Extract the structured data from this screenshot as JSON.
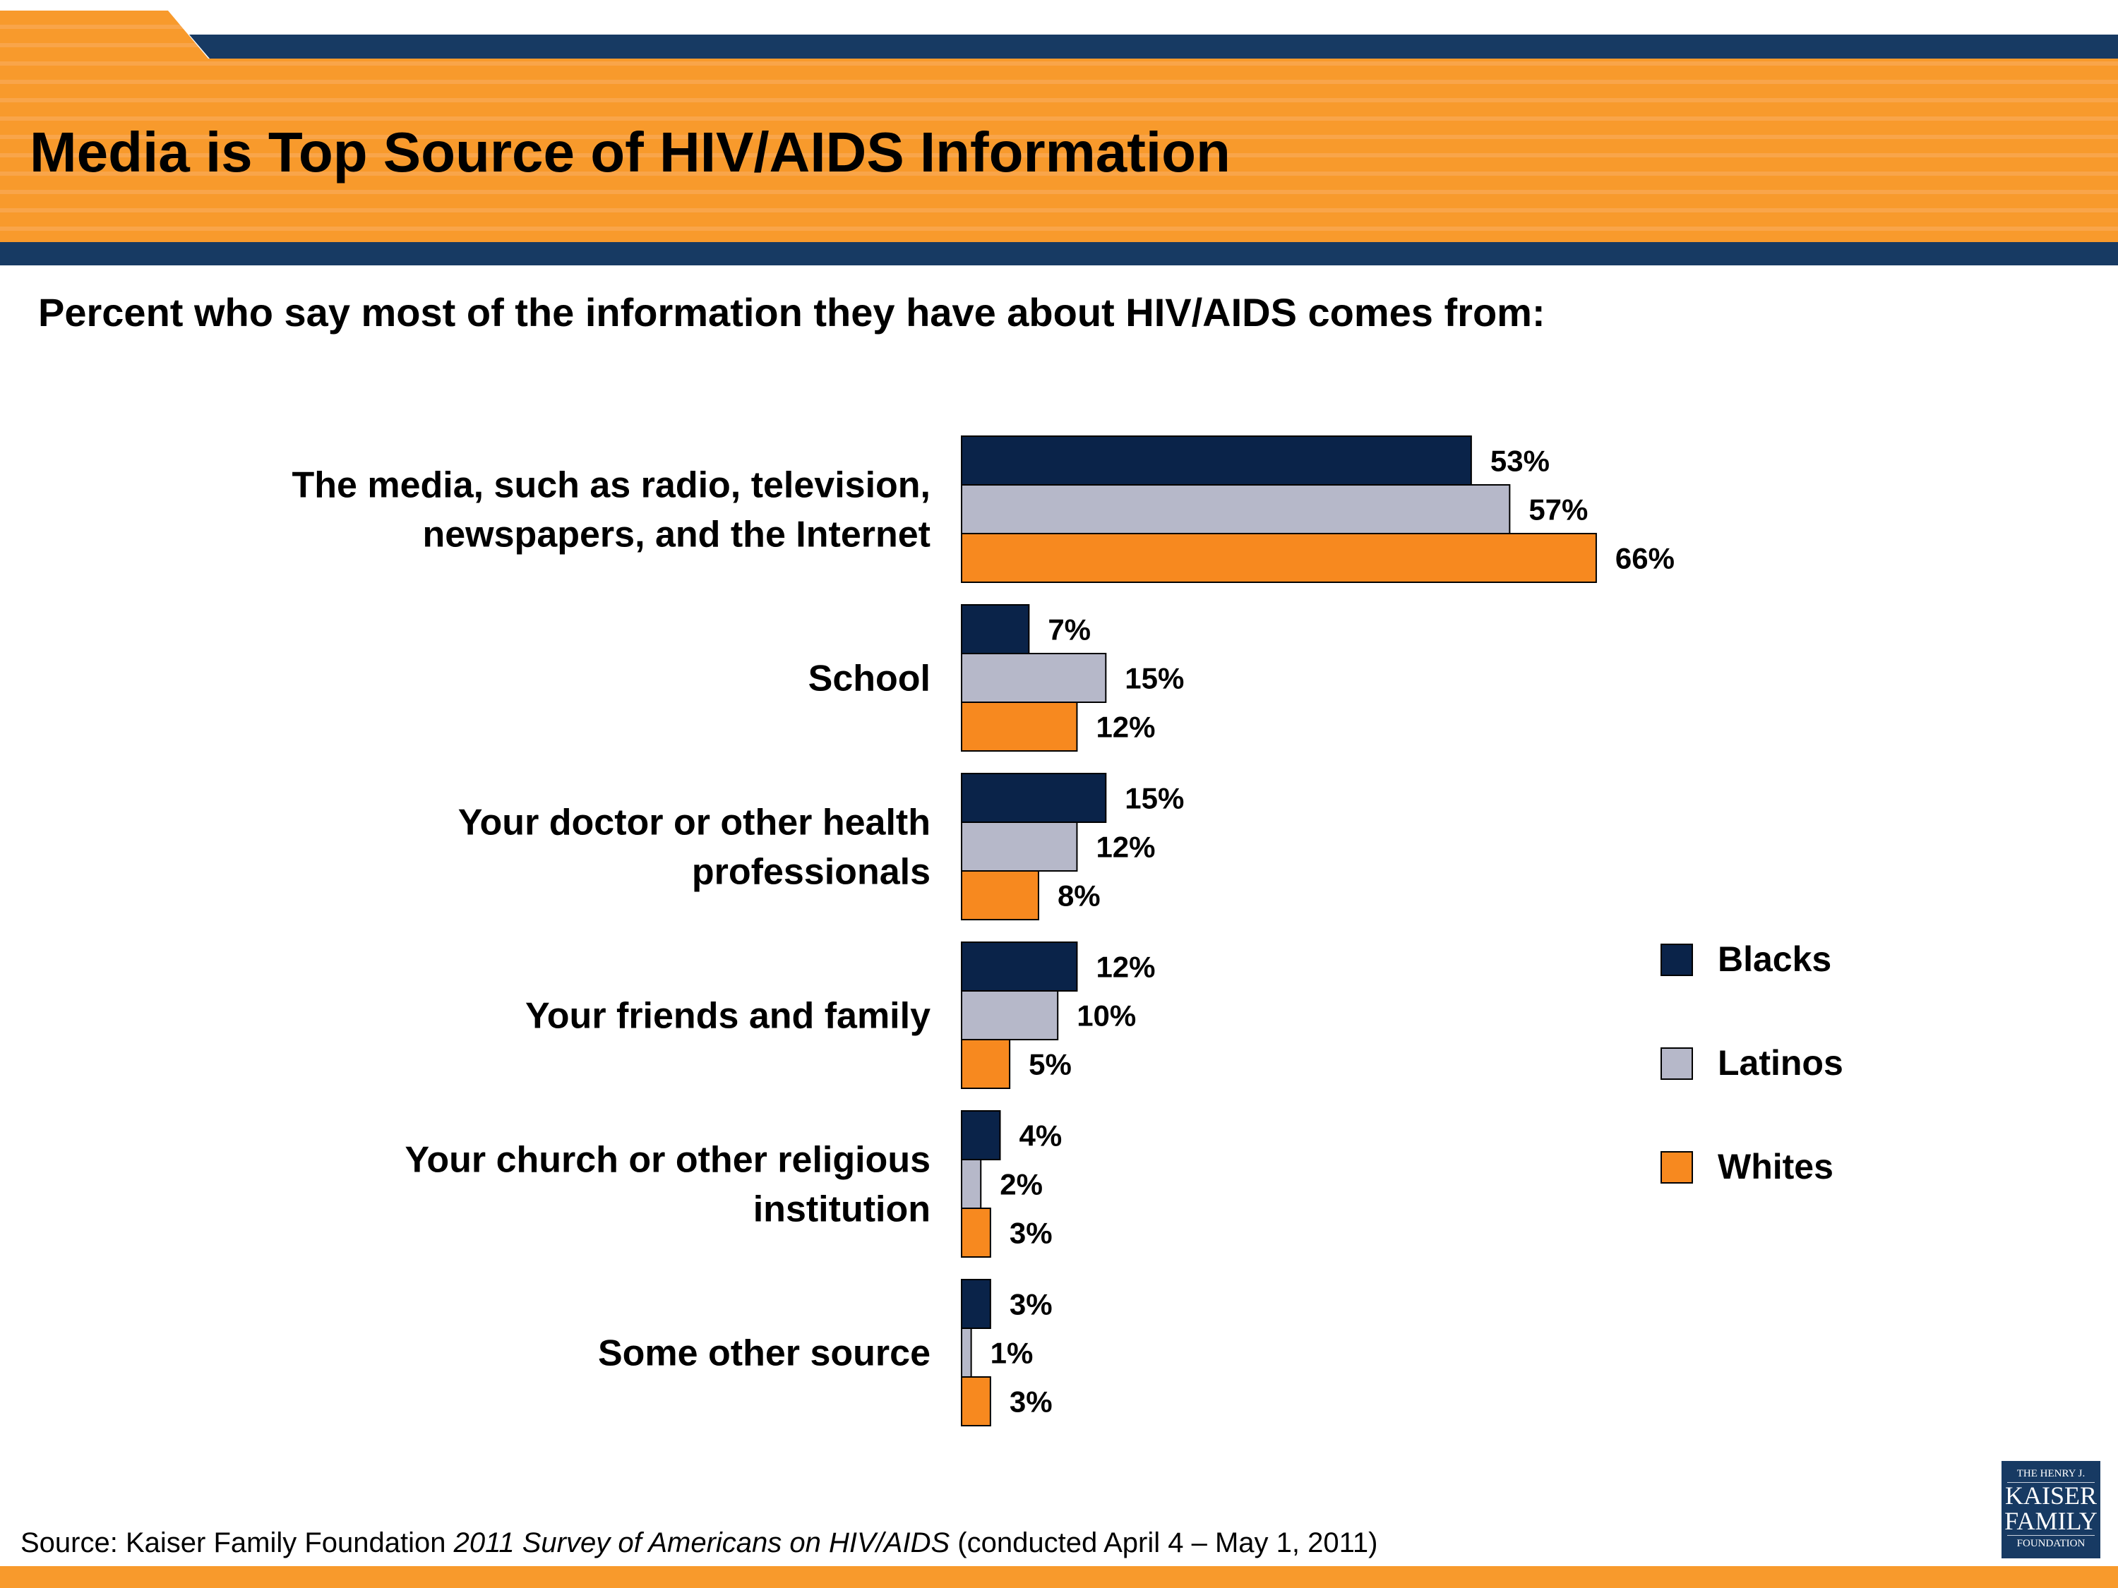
{
  "header": {
    "title": "Media is Top Source of HIV/AIDS Information"
  },
  "subtitle": "Percent who say most of the information they have about HIV/AIDS comes from:",
  "source": {
    "prefix": "Source: Kaiser Family Foundation ",
    "italic": "2011 Survey of Americans on HIV/AIDS",
    "suffix": " (conducted April 4 – May 1, 2011)"
  },
  "logo": {
    "line1": "THE HENRY J.",
    "line2": "KAISER",
    "line3": "FAMILY",
    "line4": "FOUNDATION"
  },
  "colors": {
    "header_orange": "#f89a2c",
    "header_navy": "#173a63",
    "blacks": "#0a2349",
    "latinos": "#b6b8c9",
    "whites": "#f7891f"
  },
  "chart_data": {
    "type": "bar",
    "orientation": "horizontal",
    "categories": [
      [
        "The media, such as radio, television,",
        "newspapers, and the Internet"
      ],
      [
        "School"
      ],
      [
        "Your doctor or other health",
        "professionals"
      ],
      [
        "Your friends and family"
      ],
      [
        "Your church or other religious",
        "institution"
      ],
      [
        "Some other source"
      ]
    ],
    "series": [
      {
        "name": "Blacks",
        "color": "#0a2349",
        "values": [
          53,
          7,
          15,
          12,
          4,
          3
        ]
      },
      {
        "name": "Latinos",
        "color": "#b6b8c9",
        "values": [
          57,
          15,
          12,
          10,
          2,
          1
        ]
      },
      {
        "name": "Whites",
        "color": "#f7891f",
        "values": [
          66,
          12,
          8,
          5,
          3,
          3
        ]
      }
    ],
    "value_suffix": "%",
    "legend": "right",
    "grid": false,
    "axes_visible": false
  }
}
